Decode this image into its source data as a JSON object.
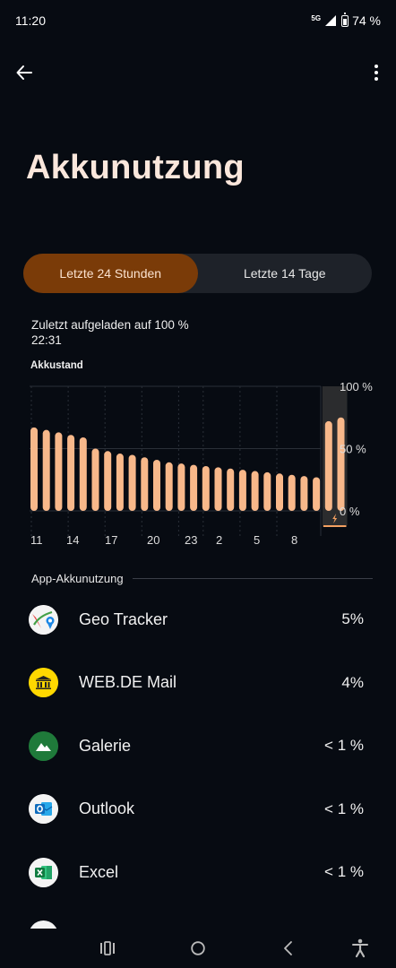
{
  "status_bar": {
    "time": "11:20",
    "network": "5G",
    "battery": "74 %"
  },
  "page": {
    "title": "Akkunutzung"
  },
  "tabs": [
    {
      "label": "Letzte 24 Stunden",
      "active": true
    },
    {
      "label": "Letzte 14 Tage",
      "active": false
    }
  ],
  "charge_info": {
    "line1": "Zuletzt aufgeladen auf 100 %",
    "line2": "22:31"
  },
  "chart_label": "Akkustand",
  "chart_data": {
    "type": "bar",
    "title": "Akkustand",
    "x_tick_labels": [
      "11",
      "14",
      "17",
      "20",
      "23",
      "2",
      "5",
      "8"
    ],
    "y_tick_labels": [
      "100 %",
      "50 %",
      "0 %"
    ],
    "ylim": [
      0,
      100
    ],
    "values": [
      67,
      65,
      63,
      61,
      59,
      50,
      48,
      46,
      45,
      43,
      41,
      39,
      38,
      37,
      36,
      35,
      34,
      33,
      32,
      31,
      30,
      29,
      28,
      27,
      72,
      75
    ],
    "highlighted_indices": [
      24,
      25
    ],
    "bar_color": "#f8b88a",
    "highlight_color": "#3a3a3a",
    "charge_color": "#f3a061"
  },
  "section_title": "App-Akkunutzung",
  "apps": [
    {
      "name": "Geo Tracker",
      "usage": "5%",
      "icon": "geo-tracker-icon"
    },
    {
      "name": "WEB.DE Mail",
      "usage": "4%",
      "icon": "webde-mail-icon"
    },
    {
      "name": "Galerie",
      "usage": "< 1 %",
      "icon": "gallery-icon"
    },
    {
      "name": "Outlook",
      "usage": "< 1 %",
      "icon": "outlook-icon"
    },
    {
      "name": "Excel",
      "usage": "< 1 %",
      "icon": "excel-icon"
    }
  ]
}
